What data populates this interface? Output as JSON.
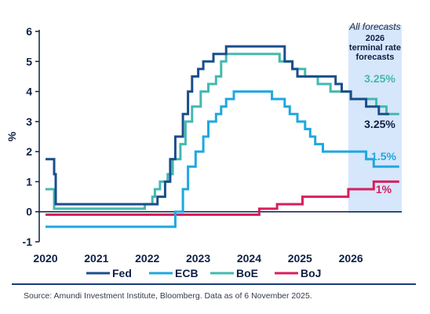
{
  "chart_data": {
    "type": "line",
    "ylabel": "%",
    "xlim": [
      2020,
      2027.0
    ],
    "ylim": [
      -1,
      6
    ],
    "yticks": [
      -1,
      0,
      1,
      2,
      3,
      4,
      5,
      6
    ],
    "xticks": [
      2020,
      2021,
      2022,
      2023,
      2024,
      2025,
      2026
    ],
    "forecast_region": {
      "start": 2025.95,
      "end": 2027.0,
      "title": "All forecasts",
      "subtitle_lines": [
        "2026",
        "terminal rate",
        "forecasts"
      ]
    },
    "series": [
      {
        "name": "Fed",
        "color": "#1a4e8c",
        "points": [
          [
            2020.0,
            1.75
          ],
          [
            2020.17,
            1.75
          ],
          [
            2020.17,
            1.25
          ],
          [
            2020.2,
            1.25
          ],
          [
            2020.2,
            0.25
          ],
          [
            2022.2,
            0.25
          ],
          [
            2022.2,
            0.5
          ],
          [
            2022.35,
            0.5
          ],
          [
            2022.35,
            1.0
          ],
          [
            2022.45,
            1.0
          ],
          [
            2022.45,
            1.75
          ],
          [
            2022.55,
            1.75
          ],
          [
            2022.55,
            2.5
          ],
          [
            2022.7,
            2.5
          ],
          [
            2022.7,
            3.25
          ],
          [
            2022.8,
            3.25
          ],
          [
            2022.8,
            4.0
          ],
          [
            2022.88,
            4.0
          ],
          [
            2022.88,
            4.5
          ],
          [
            2023.0,
            4.5
          ],
          [
            2023.0,
            4.75
          ],
          [
            2023.1,
            4.75
          ],
          [
            2023.1,
            5.0
          ],
          [
            2023.3,
            5.0
          ],
          [
            2023.3,
            5.25
          ],
          [
            2023.55,
            5.25
          ],
          [
            2023.55,
            5.5
          ],
          [
            2024.7,
            5.5
          ],
          [
            2024.7,
            5.0
          ],
          [
            2024.85,
            5.0
          ],
          [
            2024.85,
            4.75
          ],
          [
            2024.95,
            4.75
          ],
          [
            2024.95,
            4.5
          ],
          [
            2025.7,
            4.5
          ],
          [
            2025.7,
            4.25
          ],
          [
            2025.82,
            4.25
          ],
          [
            2025.82,
            4.0
          ],
          [
            2026.0,
            4.0
          ],
          [
            2026.0,
            3.75
          ],
          [
            2026.3,
            3.75
          ],
          [
            2026.3,
            3.5
          ],
          [
            2026.55,
            3.5
          ],
          [
            2026.55,
            3.25
          ],
          [
            2026.75,
            3.25
          ]
        ],
        "end_label": "3.25%"
      },
      {
        "name": "ECB",
        "color": "#1ea8e0",
        "points": [
          [
            2020.0,
            -0.5
          ],
          [
            2022.55,
            -0.5
          ],
          [
            2022.55,
            0.0
          ],
          [
            2022.7,
            0.0
          ],
          [
            2022.7,
            0.75
          ],
          [
            2022.8,
            0.75
          ],
          [
            2022.8,
            1.5
          ],
          [
            2022.95,
            1.5
          ],
          [
            2022.95,
            2.0
          ],
          [
            2023.1,
            2.0
          ],
          [
            2023.1,
            2.5
          ],
          [
            2023.2,
            2.5
          ],
          [
            2023.2,
            3.0
          ],
          [
            2023.35,
            3.0
          ],
          [
            2023.35,
            3.25
          ],
          [
            2023.45,
            3.25
          ],
          [
            2023.45,
            3.5
          ],
          [
            2023.55,
            3.5
          ],
          [
            2023.55,
            3.75
          ],
          [
            2023.7,
            3.75
          ],
          [
            2023.7,
            4.0
          ],
          [
            2024.45,
            4.0
          ],
          [
            2024.45,
            3.75
          ],
          [
            2024.7,
            3.75
          ],
          [
            2024.7,
            3.5
          ],
          [
            2024.8,
            3.5
          ],
          [
            2024.8,
            3.25
          ],
          [
            2024.95,
            3.25
          ],
          [
            2024.95,
            3.0
          ],
          [
            2025.1,
            3.0
          ],
          [
            2025.1,
            2.75
          ],
          [
            2025.2,
            2.75
          ],
          [
            2025.2,
            2.5
          ],
          [
            2025.3,
            2.5
          ],
          [
            2025.3,
            2.25
          ],
          [
            2025.45,
            2.25
          ],
          [
            2025.45,
            2.0
          ],
          [
            2026.3,
            2.0
          ],
          [
            2026.3,
            1.75
          ],
          [
            2026.45,
            1.75
          ],
          [
            2026.45,
            1.5
          ],
          [
            2026.95,
            1.5
          ]
        ],
        "end_label": "1.5%"
      },
      {
        "name": "BoE",
        "color": "#44b8b0",
        "points": [
          [
            2020.0,
            0.75
          ],
          [
            2020.17,
            0.75
          ],
          [
            2020.17,
            0.1
          ],
          [
            2021.95,
            0.1
          ],
          [
            2021.95,
            0.25
          ],
          [
            2022.1,
            0.25
          ],
          [
            2022.1,
            0.5
          ],
          [
            2022.15,
            0.5
          ],
          [
            2022.15,
            0.75
          ],
          [
            2022.25,
            0.75
          ],
          [
            2022.25,
            1.0
          ],
          [
            2022.4,
            1.0
          ],
          [
            2022.4,
            1.25
          ],
          [
            2022.5,
            1.25
          ],
          [
            2022.5,
            1.75
          ],
          [
            2022.65,
            1.75
          ],
          [
            2022.65,
            2.25
          ],
          [
            2022.75,
            2.25
          ],
          [
            2022.75,
            3.0
          ],
          [
            2022.88,
            3.0
          ],
          [
            2022.88,
            3.5
          ],
          [
            2023.05,
            3.5
          ],
          [
            2023.05,
            4.0
          ],
          [
            2023.2,
            4.0
          ],
          [
            2023.2,
            4.25
          ],
          [
            2023.35,
            4.25
          ],
          [
            2023.35,
            4.5
          ],
          [
            2023.45,
            4.5
          ],
          [
            2023.45,
            5.0
          ],
          [
            2023.55,
            5.0
          ],
          [
            2023.55,
            5.25
          ],
          [
            2024.6,
            5.25
          ],
          [
            2024.6,
            5.0
          ],
          [
            2024.85,
            5.0
          ],
          [
            2024.85,
            4.75
          ],
          [
            2025.1,
            4.75
          ],
          [
            2025.1,
            4.5
          ],
          [
            2025.35,
            4.5
          ],
          [
            2025.35,
            4.25
          ],
          [
            2025.6,
            4.25
          ],
          [
            2025.6,
            4.0
          ],
          [
            2026.0,
            4.0
          ],
          [
            2026.0,
            3.75
          ],
          [
            2026.5,
            3.75
          ],
          [
            2026.5,
            3.5
          ],
          [
            2026.7,
            3.5
          ],
          [
            2026.7,
            3.25
          ],
          [
            2026.95,
            3.25
          ]
        ],
        "end_label": "3.25%"
      },
      {
        "name": "BoJ",
        "color": "#d81f5c",
        "points": [
          [
            2020.0,
            -0.1
          ],
          [
            2024.2,
            -0.1
          ],
          [
            2024.2,
            0.1
          ],
          [
            2024.55,
            0.1
          ],
          [
            2024.55,
            0.25
          ],
          [
            2025.05,
            0.25
          ],
          [
            2025.05,
            0.5
          ],
          [
            2025.95,
            0.5
          ],
          [
            2025.95,
            0.75
          ],
          [
            2026.45,
            0.75
          ],
          [
            2026.45,
            1.0
          ],
          [
            2026.95,
            1.0
          ]
        ],
        "end_label": "1%"
      }
    ]
  },
  "source": "Source: Amundi Investment Institute, Bloomberg. Data as of 6 November 2025."
}
